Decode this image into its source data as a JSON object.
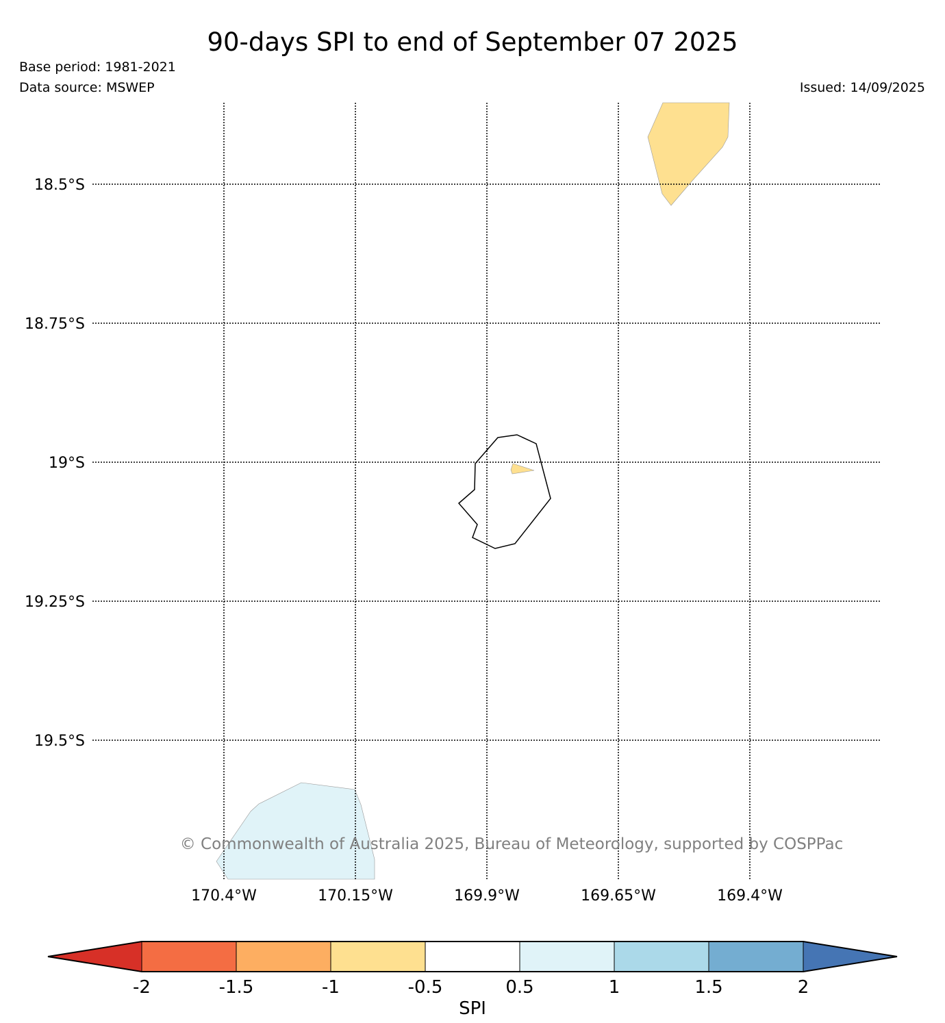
{
  "title": "90-days SPI to end of September 07 2025",
  "base_period": "Base period: 1981-2021",
  "data_source": "Data source: MSWEP",
  "issued": "Issued: 14/09/2025",
  "copyright": "© Commonwealth of Australia 2025, Bureau of Meteorology, supported by COSPPac",
  "map": {
    "lat_labels": [
      "18.5°S",
      "18.75°S",
      "19°S",
      "19.25°S",
      "19.5°S"
    ],
    "lon_labels": [
      "170.4°W",
      "170.15°W",
      "169.9°W",
      "169.65°W",
      "169.4°W"
    ],
    "colors": {
      "dry_patch": "#fee090",
      "wet_patch": "#e0f3f8",
      "coastline": "#000000",
      "gridline": "#000000"
    }
  },
  "colorbar": {
    "label": "SPI",
    "ticks": [
      "-2",
      "-1.5",
      "-1",
      "-0.5",
      "0.5",
      "1",
      "1.5",
      "2"
    ],
    "colors": [
      "#d73027",
      "#f46d43",
      "#fdae61",
      "#fee090",
      "#ffffff",
      "#e0f3f8",
      "#abd9e9",
      "#74add1",
      "#4575b4"
    ]
  }
}
